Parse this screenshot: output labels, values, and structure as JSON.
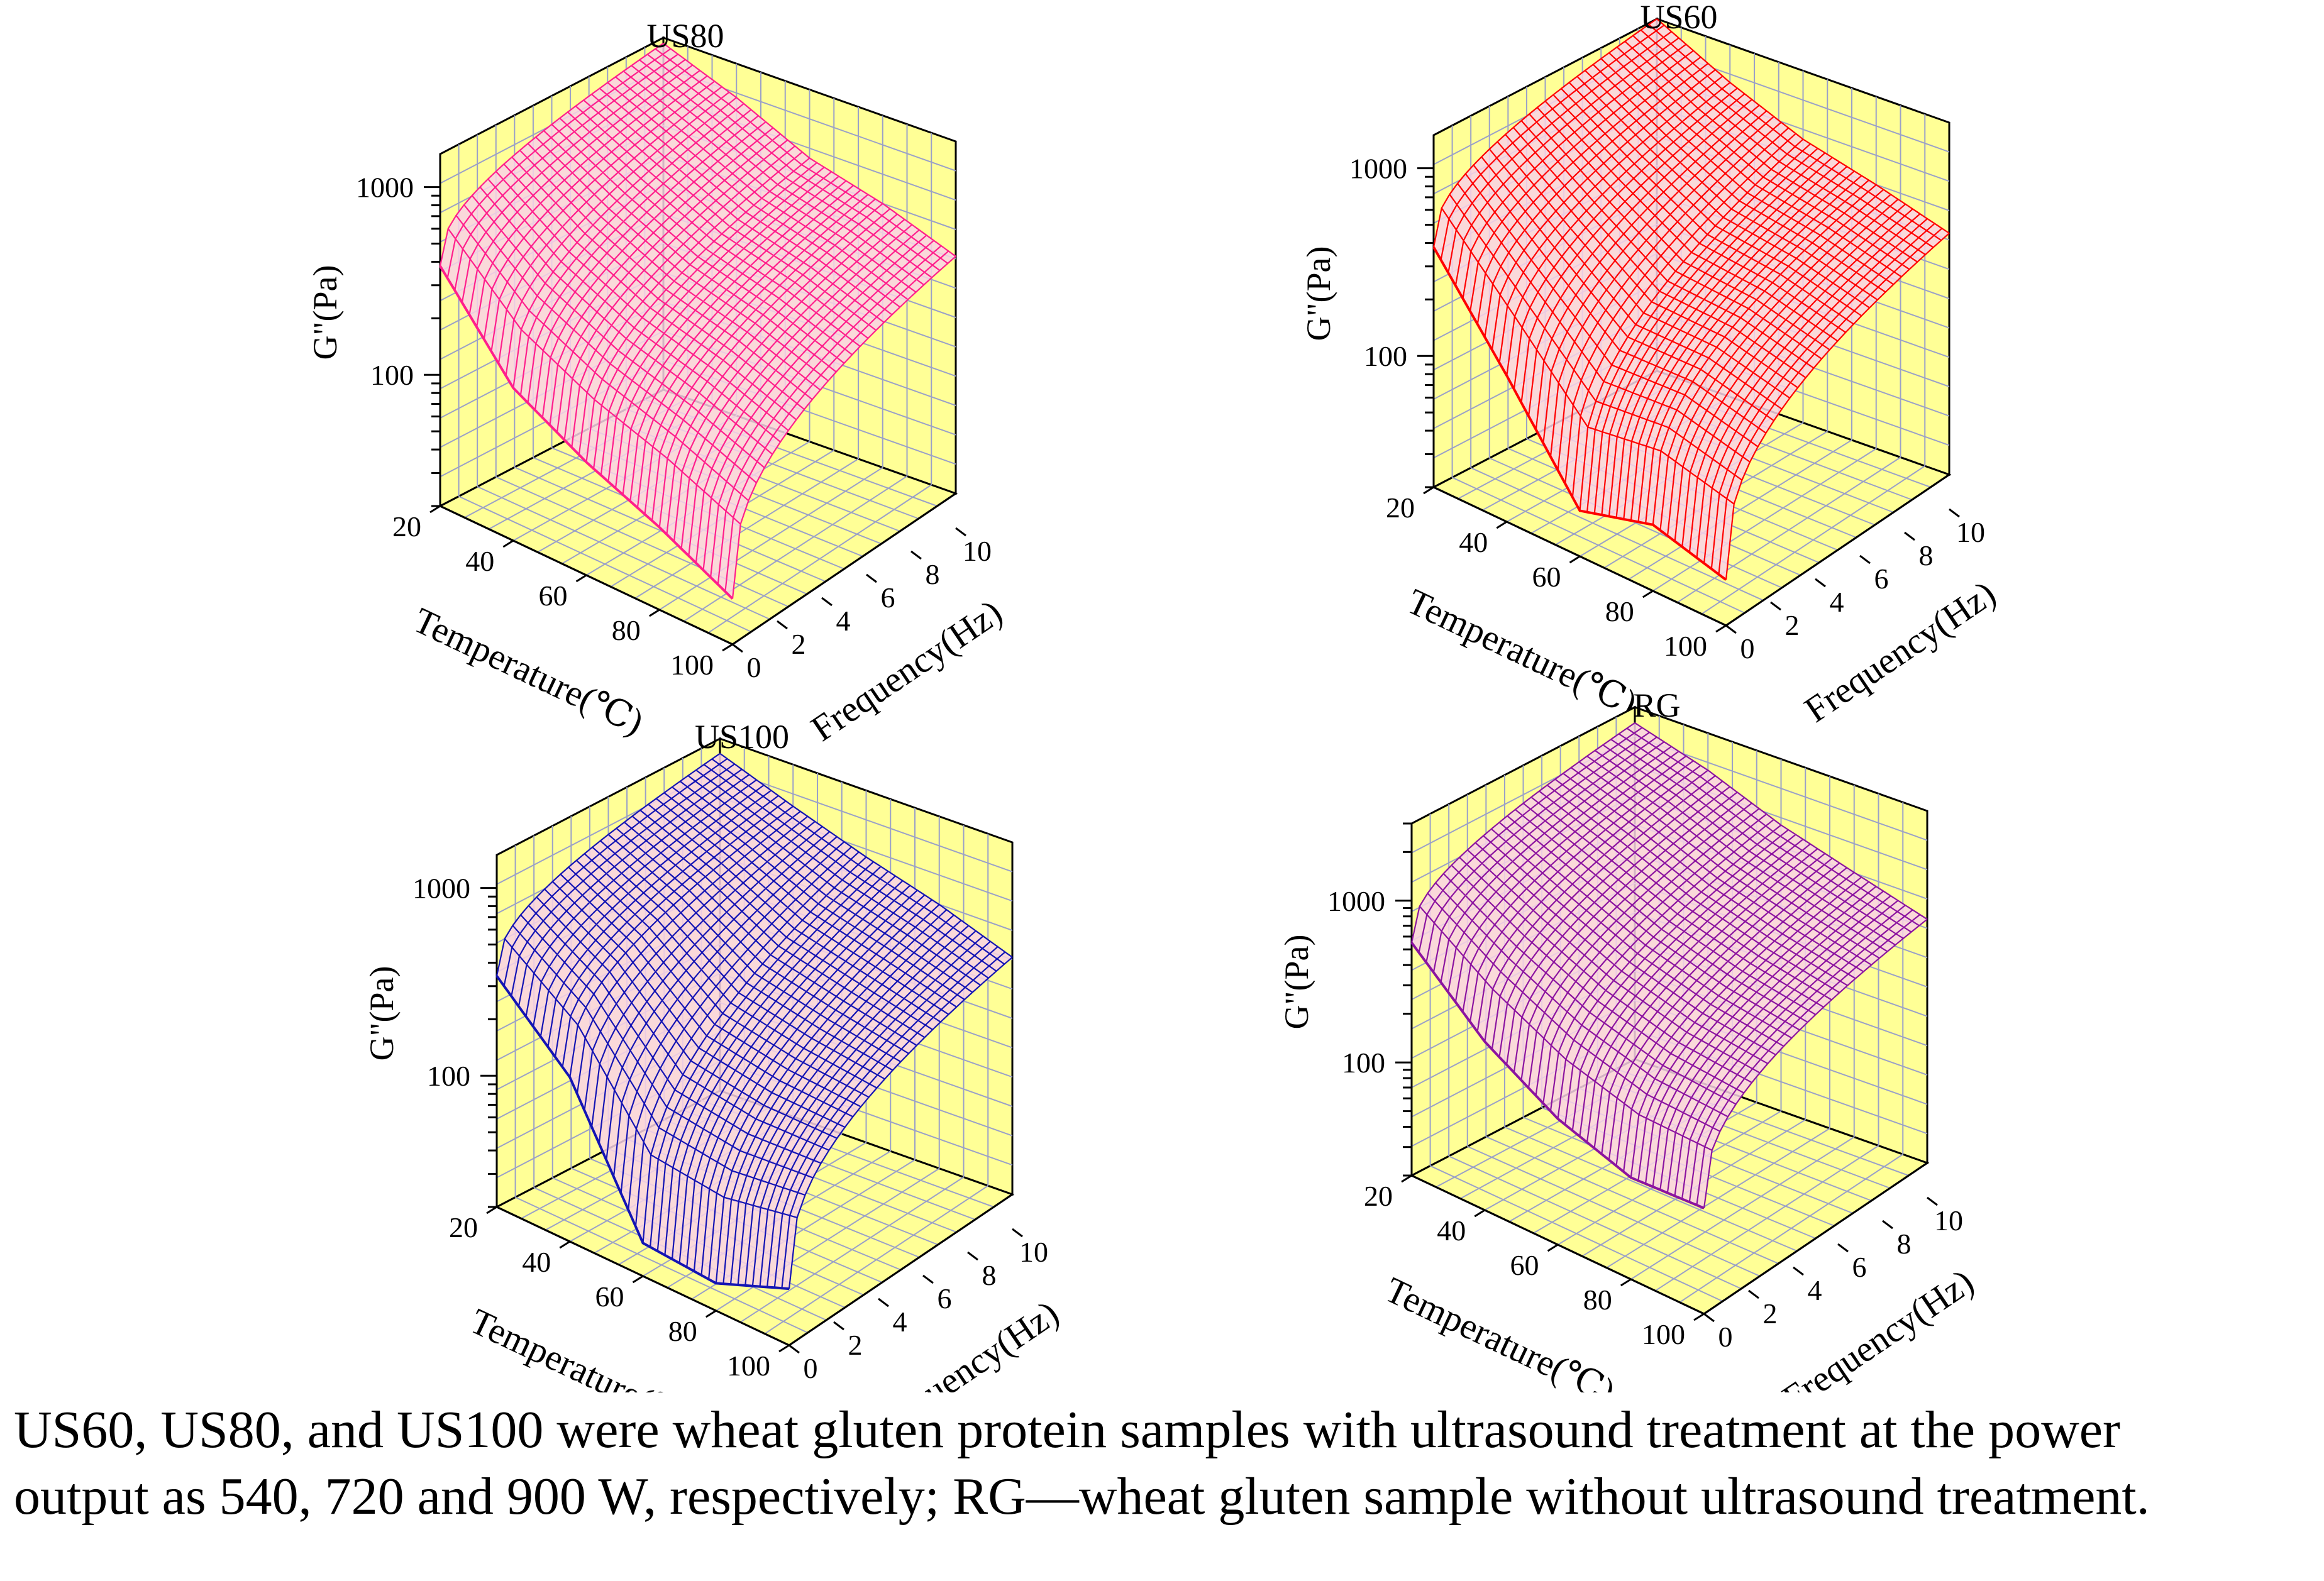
{
  "chart_data": [
    {
      "type": "surface3d",
      "title": "US80",
      "xlabel": "Temperature(℃)",
      "ylabel": "Frequency(Hz)",
      "zlabel": "G\"(Pa)",
      "xticks": [
        "20",
        "40",
        "60",
        "80",
        "100"
      ],
      "yticks": [
        "0",
        "2",
        "4",
        "6",
        "8",
        "10"
      ],
      "zticks": [
        "100",
        "1000"
      ],
      "xlim": [
        20,
        100
      ],
      "ylim": [
        0,
        10
      ],
      "zlim": [
        20,
        1500
      ],
      "zscale": "log",
      "temperature": [
        20,
        40,
        60,
        80,
        100
      ],
      "frequency": [
        0,
        2,
        4,
        6,
        8,
        10
      ],
      "gpp_at_0Hz": [
        380,
        130,
        80,
        55,
        35
      ],
      "gpp_at_10Hz": [
        1400,
        1100,
        800,
        700,
        560
      ],
      "color": "#ff1f8c"
    },
    {
      "type": "surface3d",
      "title": "US60",
      "xlabel": "Temperature(℃)",
      "ylabel": "Frequency(Hz)",
      "zlabel": "G\"(Pa)",
      "xticks": [
        "20",
        "40",
        "60",
        "80",
        "100"
      ],
      "yticks": [
        "0",
        "2",
        "4",
        "6",
        "8",
        "10"
      ],
      "zticks": [
        "100",
        "1000"
      ],
      "xlim": [
        20,
        100
      ],
      "ylim": [
        0,
        10
      ],
      "zlim": [
        20,
        1500
      ],
      "zscale": "log",
      "temperature": [
        20,
        40,
        60,
        80,
        100
      ],
      "frequency": [
        0,
        2,
        4,
        6,
        8,
        10
      ],
      "gpp_at_0Hz": [
        380,
        120,
        35,
        45,
        35
      ],
      "gpp_at_10Hz": [
        1500,
        1050,
        800,
        700,
        590
      ],
      "color": "#ff0000"
    },
    {
      "type": "surface3d",
      "title": "US100",
      "xlabel": "Temperature(℃)",
      "ylabel": "Frequency(Hz)",
      "zlabel": "G\"(Pa)",
      "xticks": [
        "20",
        "40",
        "60",
        "80",
        "100"
      ],
      "yticks": [
        "0",
        "2",
        "4",
        "6",
        "8",
        "10"
      ],
      "zticks": [
        "100",
        "1000"
      ],
      "xlim": [
        20,
        100
      ],
      "ylim": [
        0,
        10
      ],
      "zlim": [
        20,
        1500
      ],
      "zscale": "log",
      "temperature": [
        20,
        40,
        60,
        80,
        100
      ],
      "frequency": [
        0,
        2,
        4,
        6,
        8,
        10
      ],
      "gpp_at_0Hz": [
        340,
        150,
        30,
        28,
        40
      ],
      "gpp_at_10Hz": [
        1250,
        1000,
        820,
        700,
        560
      ],
      "color": "#1414b4"
    },
    {
      "type": "surface3d",
      "title": "RG",
      "xlabel": "Temperature(℃)",
      "ylabel": "Frequency(Hz)",
      "zlabel": "G\"(Pa)",
      "xticks": [
        "20",
        "40",
        "60",
        "80",
        "100"
      ],
      "yticks": [
        "0",
        "2",
        "4",
        "6",
        "8",
        "10"
      ],
      "zticks": [
        "100",
        "1000"
      ],
      "xlim": [
        20,
        100
      ],
      "ylim": [
        0,
        10
      ],
      "zlim": [
        20,
        3000
      ],
      "zscale": "log",
      "temperature": [
        20,
        40,
        60,
        80,
        100
      ],
      "frequency": [
        0,
        2,
        4,
        6,
        8,
        10
      ],
      "gpp_at_0Hz": [
        550,
        220,
        120,
        85,
        90
      ],
      "gpp_at_10Hz": [
        2400,
        2000,
        1500,
        1250,
        1050
      ],
      "color": "#8c14a0"
    }
  ],
  "caption": {
    "line1": "US60, US80, and US100 were wheat gluten protein samples with ultrasound treatment at the power",
    "line2": "output as 540, 720 and 900 W, respectively; RG—wheat gluten sample without ultrasound treatment."
  }
}
